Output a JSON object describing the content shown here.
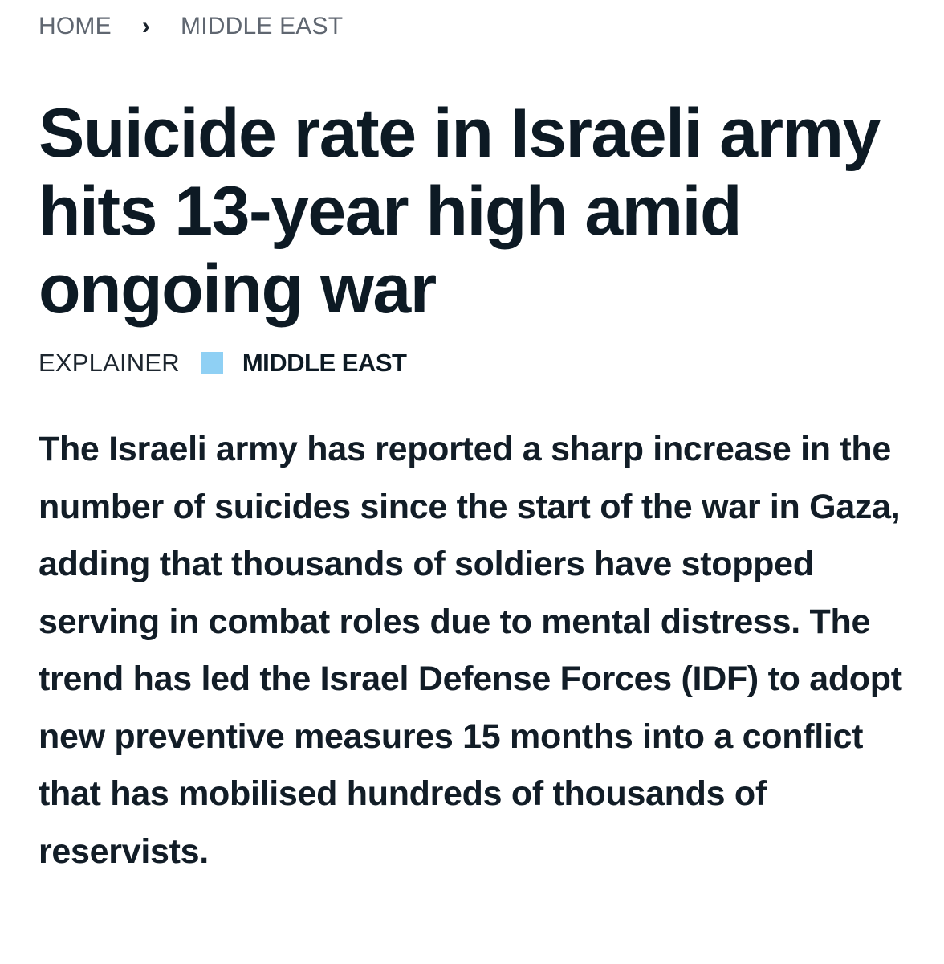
{
  "breadcrumb": {
    "home": "HOME",
    "separator": "›",
    "section": "MIDDLE EAST"
  },
  "article": {
    "title": "Suicide rate in Israeli army hits 13-year high amid ongoing war",
    "type": "EXPLAINER",
    "category": "MIDDLE EAST",
    "category_marker_color": "#8fd0f4",
    "lede": "The Israeli army has reported a sharp increase in the number of suicides since the start of the war in Gaza, adding that thousands of soldiers have stopped serving in combat roles due to mental distress. The trend has led the Israel Defense Forces (IDF) to adopt new preventive measures 15 months into a conflict that has mobilised hundreds of thousands of reservists."
  }
}
